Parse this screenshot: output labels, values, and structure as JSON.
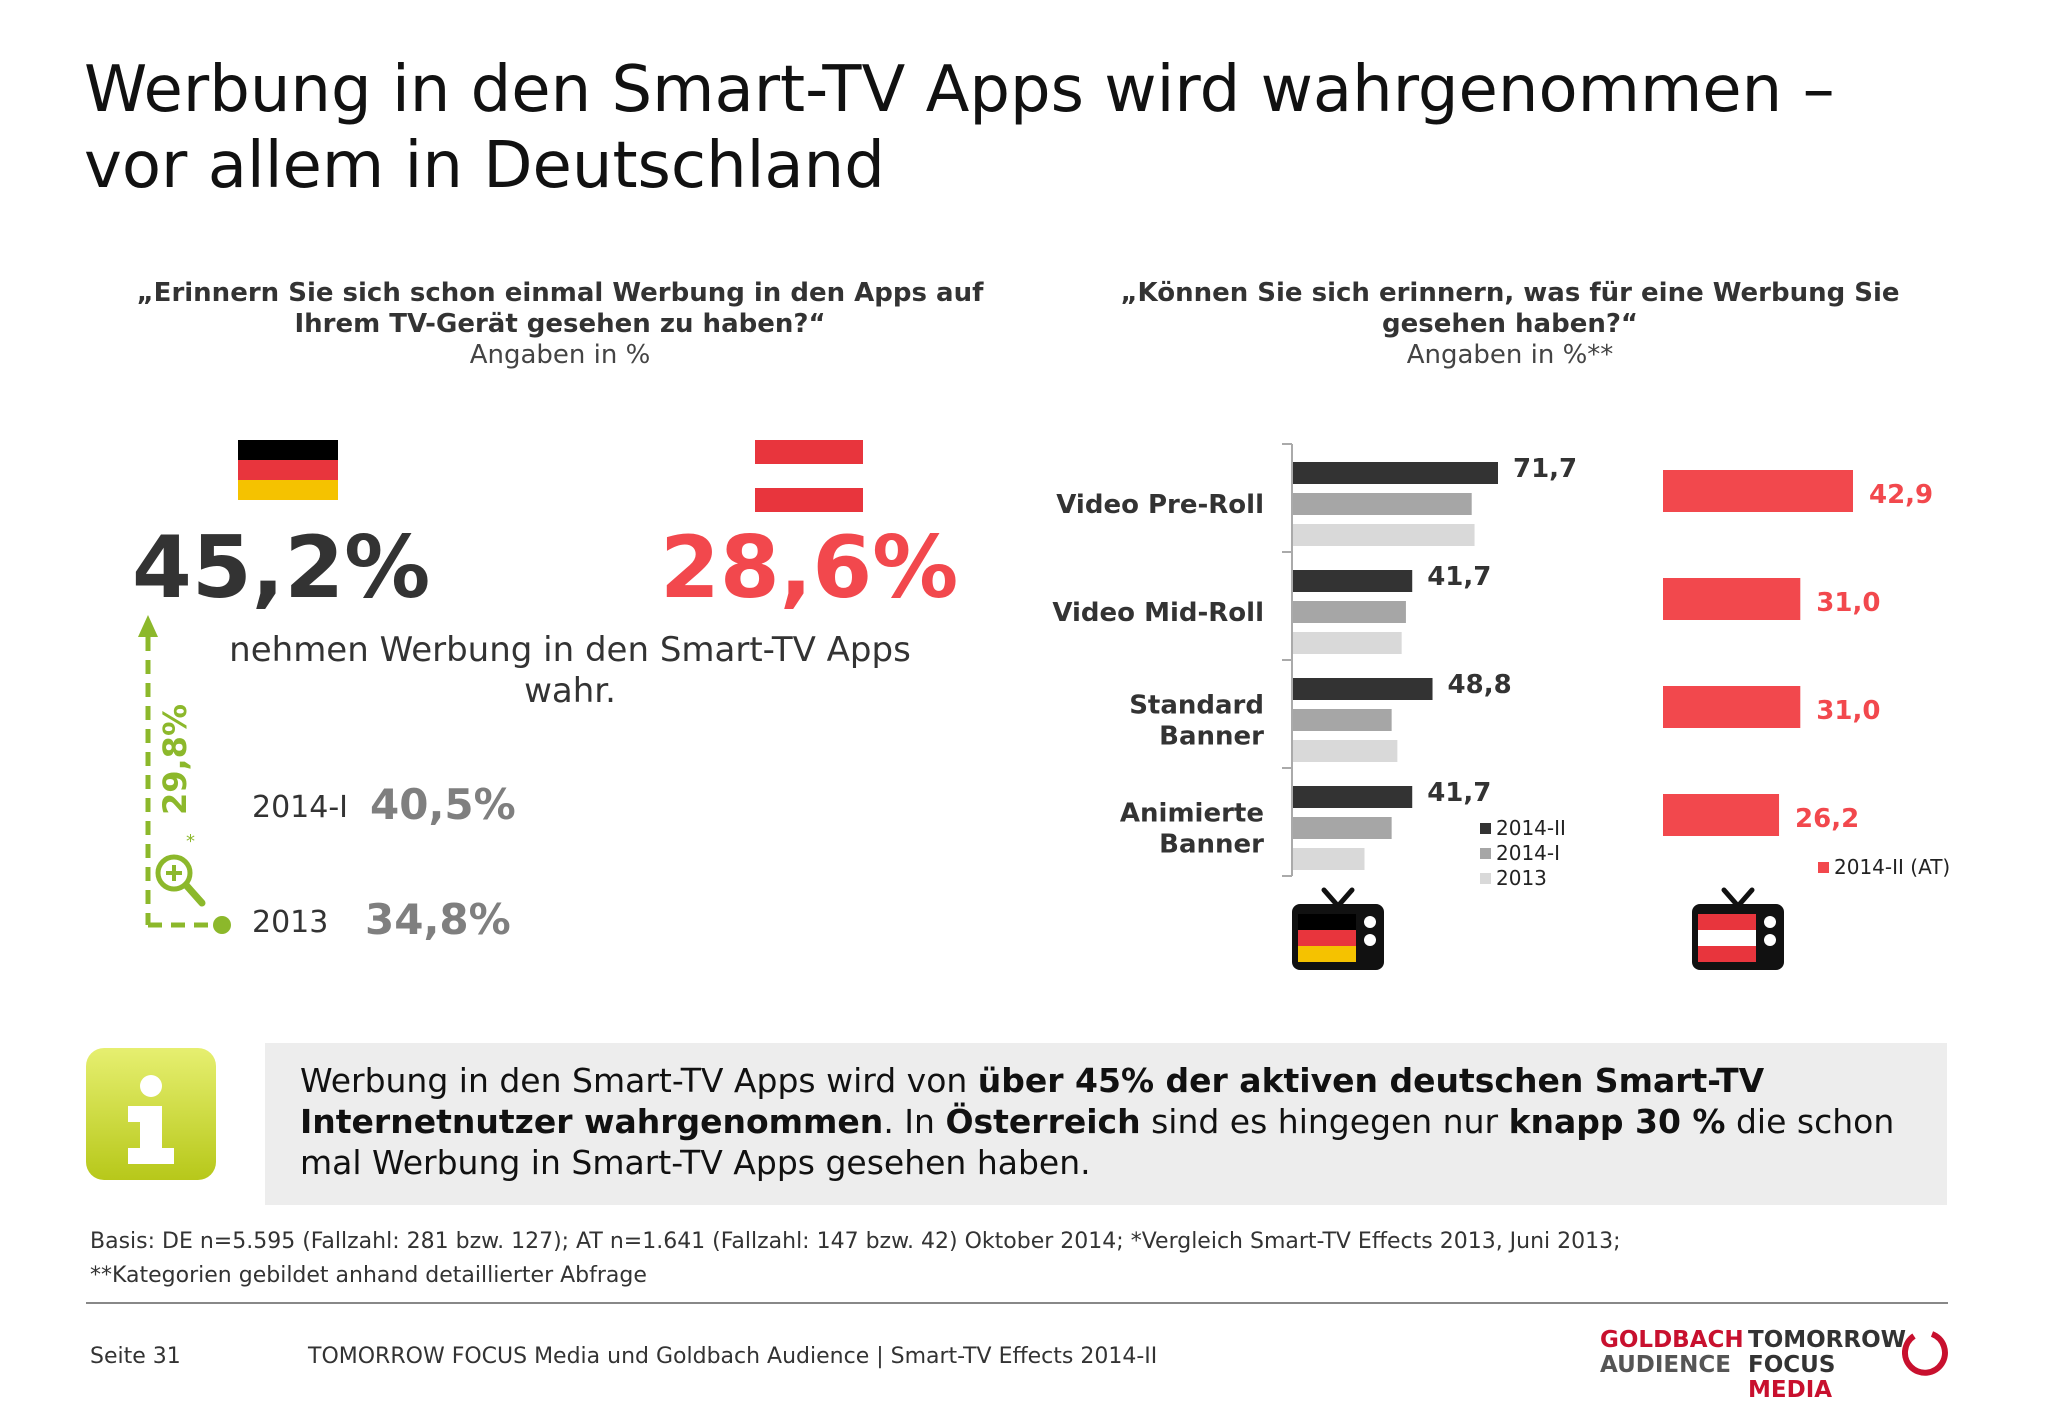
{
  "title": {
    "line1": "Werbung in den Smart-TV Apps wird wahrgenommen –",
    "line2": "vor allem in Deutschland"
  },
  "left_panel": {
    "question_line1": "„Erinnern Sie sich schon einmal Werbung in den Apps auf",
    "question_line2": "Ihrem TV-Gerät gesehen zu haben?“",
    "unit": "Angaben in %",
    "de_value": "45,2%",
    "at_value": "28,6%",
    "perceive_line1": "nehmen Werbung in den Smart-TV Apps",
    "perceive_line2": "wahr.",
    "history": [
      {
        "label": "2014-I",
        "value": "40,5%"
      },
      {
        "label": "2013",
        "value": "34,8%"
      }
    ],
    "growth": "29,8%",
    "growth_note": "*"
  },
  "right_panel": {
    "question_line1": "„Können Sie sich erinnern, was für eine Werbung Sie",
    "question_line2": "gesehen haben?“",
    "unit": "Angaben in %**"
  },
  "colors": {
    "accent_red": "#f2484d",
    "dark_gray": "#333333",
    "mid_gray": "#a6a6a6",
    "light_gray": "#d9d9d9",
    "growth_green": "#8cb82b",
    "flag_red": "#e8353d",
    "flag_gold": "#f5c200",
    "logo_red": "#c8102e"
  },
  "chart_data": {
    "type": "bar",
    "orientation": "horizontal",
    "categories": [
      "Video Pre-Roll",
      "Video Mid-Roll",
      "Standard Banner",
      "Animierte Banner"
    ],
    "category_lines": [
      [
        "Video Pre-Roll"
      ],
      [
        "Video Mid-Roll"
      ],
      [
        "Standard",
        "Banner"
      ],
      [
        "Animierte",
        "Banner"
      ]
    ],
    "series_de": [
      {
        "name": "2014-II",
        "values": [
          71.7,
          41.7,
          48.8,
          41.7
        ],
        "color": "#333333"
      },
      {
        "name": "2014-I",
        "values": [
          62.5,
          39.5,
          34.5,
          34.5
        ],
        "color": "#a6a6a6"
      },
      {
        "name": "2013",
        "values": [
          63.5,
          38.0,
          36.5,
          25.0
        ],
        "color": "#d9d9d9"
      }
    ],
    "data_labels_de": [
      "71,7",
      "41,7",
      "48,8",
      "41,7"
    ],
    "series_at": {
      "name": "2014-II (AT)",
      "values": [
        42.9,
        31.0,
        31.0,
        26.2
      ],
      "color": "#f2484d"
    },
    "data_labels_at": [
      "42,9",
      "31,0",
      "31,0",
      "26,2"
    ],
    "xlim": [
      0,
      100
    ],
    "legend_de": [
      "2014-II",
      "2014-I",
      "2013"
    ],
    "legend_at": [
      "2014-II (AT)"
    ]
  },
  "info": {
    "icon": "info-icon",
    "t1": "Werbung in den Smart-TV Apps wird von ",
    "b1": "über 45% der aktiven deutschen Smart-TV Internetnutzer wahrgenommen",
    "t2": ". In ",
    "b2": "Österreich",
    "t3": " sind es hingegen nur ",
    "b3": "knapp 30 %",
    "t4": " die schon mal Werbung in Smart-TV Apps gesehen haben."
  },
  "footnote": {
    "line1": "Basis: DE n=5.595 (Fallzahl: 281 bzw. 127); AT n=1.641 (Fallzahl: 147 bzw. 42) Oktober 2014; *Vergleich Smart-TV Effects 2013, Juni 2013;",
    "line2": "**Kategorien gebildet anhand detaillierter Abfrage"
  },
  "footer": {
    "page": "Seite 31",
    "text": "TOMORROW FOCUS Media und Goldbach Audience | Smart-TV Effects 2014-II",
    "logo1_line1": "GOLDBACH",
    "logo1_line2": "AUDIENCE",
    "logo2_line1": "TOMORROW",
    "logo2_line2a": "FOCUS",
    "logo2_line2b": "MEDIA"
  }
}
